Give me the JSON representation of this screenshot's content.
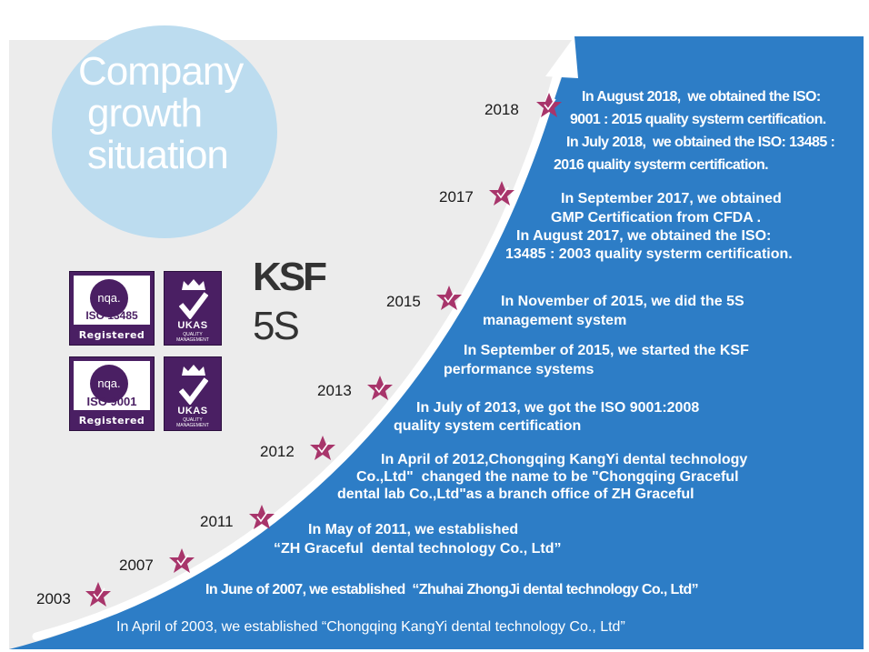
{
  "title": {
    "line1": "Company",
    "line2": "growth",
    "line3": "situation"
  },
  "colors": {
    "panel": "#ececec",
    "blue": "#2d7dc6",
    "circle": "#bcdcef",
    "star": "#a8356b",
    "cert": "#4a1f63"
  },
  "icons": {
    "milestone": "star-check-icon",
    "crown": "crown-icon",
    "check": "checkmark-icon"
  },
  "years": [
    "2018",
    "2017",
    "2015",
    "2013",
    "2012",
    "2011",
    "2007",
    "2003"
  ],
  "events": {
    "e2018": [
      "In August 2018,  we obtained the ISO:",
      "9001 : 2015 quality systerm certification.",
      "In July 2018,  we obtained the ISO: 13485 :",
      "2016 quality systerm certification."
    ],
    "e2017": [
      "In September 2017, we obtained",
      "GMP Certification from CFDA .",
      "In August 2017, we obtained the ISO:",
      "13485 : 2003 quality systerm certification."
    ],
    "e2015a": [
      "In November of 2015, we did the 5S",
      "management system"
    ],
    "e2015b": [
      "In September of 2015, we started the KSF",
      "performance systems"
    ],
    "e2013": [
      "In July of 2013, we got the ISO 9001:2008",
      "quality system certification"
    ],
    "e2012": [
      "In April of 2012,Chongqing KangYi dental technology",
      "Co.,Ltd\"  changed the name to be \"Chongqing Graceful",
      "dental lab Co.,Ltd\"as a branch office of ZH Graceful"
    ],
    "e2011": [
      "In May of 2011, we established",
      "“ZH Graceful  dental technology Co., Ltd”"
    ],
    "e2007": [
      "In June of 2007, we established  “Zhuhai ZhongJi dental technology Co., Ltd”"
    ],
    "e2003": [
      "In April of 2003, we established “Chongqing KangYi dental technology Co., Ltd”"
    ]
  },
  "certs": {
    "iso13485": {
      "logo": "nqa.",
      "standard": "ISO 13485",
      "status": "Registered"
    },
    "iso9001": {
      "logo": "nqa.",
      "standard": "ISO 9001",
      "status": "Registered"
    },
    "ukas": {
      "label": "UKAS",
      "sub1": "QUALITY",
      "sub2": "MANAGEMENT"
    }
  },
  "ksf": "KSF",
  "fives": "5S"
}
